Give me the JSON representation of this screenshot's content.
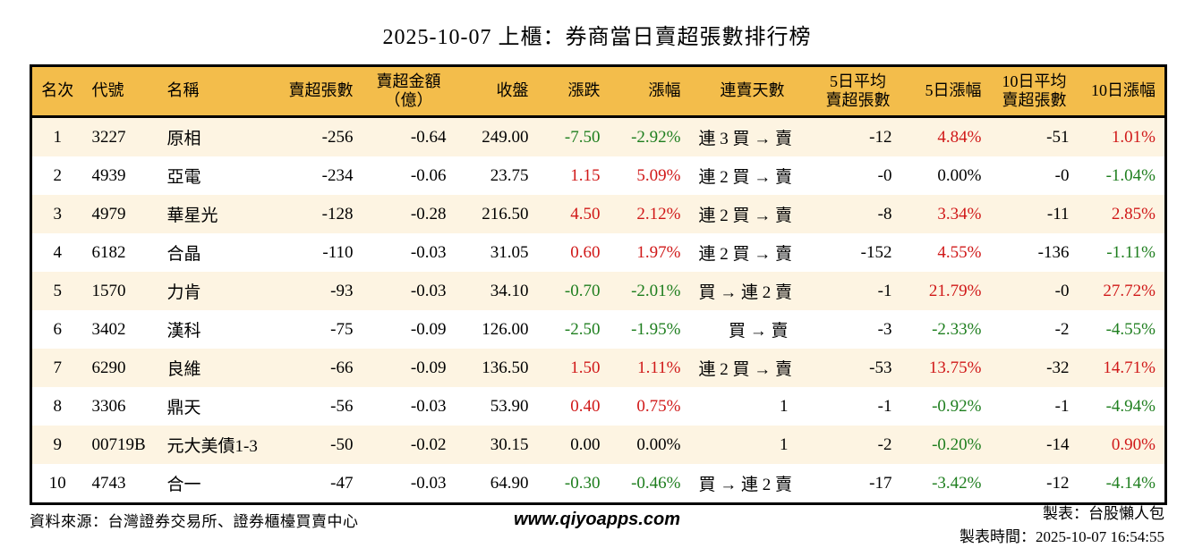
{
  "title": "2025-10-07 上櫃：券商當日賣超張數排行榜",
  "colors": {
    "positive": "#d01818",
    "negative": "#1e7e1e",
    "neutral": "#000000",
    "header_bg": "#f3bd4b",
    "stripe_bg": "#fdf4e2",
    "border": "#000000"
  },
  "table": {
    "columns": [
      {
        "key": "rank",
        "label": "名次"
      },
      {
        "key": "code",
        "label": "代號"
      },
      {
        "key": "name",
        "label": "名稱"
      },
      {
        "key": "shares",
        "label": "賣超張數"
      },
      {
        "key": "amount",
        "label": "賣超金額\n（億）"
      },
      {
        "key": "close",
        "label": "收盤"
      },
      {
        "key": "change",
        "label": "漲跌",
        "colored": true
      },
      {
        "key": "change_pct",
        "label": "漲幅",
        "colored": true
      },
      {
        "key": "streak",
        "label": "連賣天數"
      },
      {
        "key": "avg5",
        "label": "5日平均\n賣超張數"
      },
      {
        "key": "pct5",
        "label": "5日漲幅",
        "colored": true
      },
      {
        "key": "avg10",
        "label": "10日平均\n賣超張數"
      },
      {
        "key": "pct10",
        "label": "10日漲幅",
        "colored": true
      }
    ],
    "rows": [
      {
        "rank": "1",
        "code": "3227",
        "name": "原相",
        "shares": "-256",
        "amount": "-0.64",
        "close": "249.00",
        "change": "-7.50",
        "change_pct": "-2.92%",
        "streak": "連 3 買 → 賣",
        "avg5": "-12",
        "pct5": "4.84%",
        "avg10": "-51",
        "pct10": "1.01%"
      },
      {
        "rank": "2",
        "code": "4939",
        "name": "亞電",
        "shares": "-234",
        "amount": "-0.06",
        "close": "23.75",
        "change": "1.15",
        "change_pct": "5.09%",
        "streak": "連 2 買 → 賣",
        "avg5": "-0",
        "pct5": "0.00%",
        "avg10": "-0",
        "pct10": "-1.04%"
      },
      {
        "rank": "3",
        "code": "4979",
        "name": "華星光",
        "shares": "-128",
        "amount": "-0.28",
        "close": "216.50",
        "change": "4.50",
        "change_pct": "2.12%",
        "streak": "連 2 買 → 賣",
        "avg5": "-8",
        "pct5": "3.34%",
        "avg10": "-11",
        "pct10": "2.85%"
      },
      {
        "rank": "4",
        "code": "6182",
        "name": "合晶",
        "shares": "-110",
        "amount": "-0.03",
        "close": "31.05",
        "change": "0.60",
        "change_pct": "1.97%",
        "streak": "連 2 買 → 賣",
        "avg5": "-152",
        "pct5": "4.55%",
        "avg10": "-136",
        "pct10": "-1.11%"
      },
      {
        "rank": "5",
        "code": "1570",
        "name": "力肯",
        "shares": "-93",
        "amount": "-0.03",
        "close": "34.10",
        "change": "-0.70",
        "change_pct": "-2.01%",
        "streak": "買 → 連 2 賣",
        "avg5": "-1",
        "pct5": "21.79%",
        "avg10": "-0",
        "pct10": "27.72%"
      },
      {
        "rank": "6",
        "code": "3402",
        "name": "漢科",
        "shares": "-75",
        "amount": "-0.09",
        "close": "126.00",
        "change": "-2.50",
        "change_pct": "-1.95%",
        "streak": "買 → 賣",
        "avg5": "-3",
        "pct5": "-2.33%",
        "avg10": "-2",
        "pct10": "-4.55%"
      },
      {
        "rank": "7",
        "code": "6290",
        "name": "良維",
        "shares": "-66",
        "amount": "-0.09",
        "close": "136.50",
        "change": "1.50",
        "change_pct": "1.11%",
        "streak": "連 2 買 → 賣",
        "avg5": "-53",
        "pct5": "13.75%",
        "avg10": "-32",
        "pct10": "14.71%"
      },
      {
        "rank": "8",
        "code": "3306",
        "name": "鼎天",
        "shares": "-56",
        "amount": "-0.03",
        "close": "53.90",
        "change": "0.40",
        "change_pct": "0.75%",
        "streak": "1",
        "avg5": "-1",
        "pct5": "-0.92%",
        "avg10": "-1",
        "pct10": "-4.94%"
      },
      {
        "rank": "9",
        "code": "00719B",
        "name": "元大美債1-3",
        "shares": "-50",
        "amount": "-0.02",
        "close": "30.15",
        "change": "0.00",
        "change_pct": "0.00%",
        "streak": "1",
        "avg5": "-2",
        "pct5": "-0.20%",
        "avg10": "-14",
        "pct10": "0.90%"
      },
      {
        "rank": "10",
        "code": "4743",
        "name": "合一",
        "shares": "-47",
        "amount": "-0.03",
        "close": "64.90",
        "change": "-0.30",
        "change_pct": "-0.46%",
        "streak": "買 → 連 2 賣",
        "avg5": "-17",
        "pct5": "-3.42%",
        "avg10": "-12",
        "pct10": "-4.14%"
      }
    ]
  },
  "footer": {
    "source": "資料來源：台灣證券交易所、證券櫃檯買賣中心",
    "website": "www.qiyoapps.com",
    "maker": "製表：台股懶人包",
    "timestamp": "製表時間：2025-10-07 16:54:55"
  }
}
